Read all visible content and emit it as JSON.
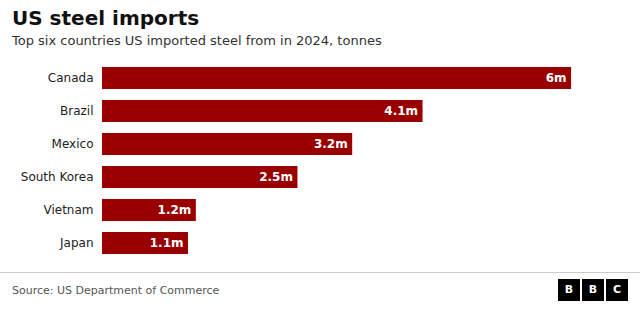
{
  "chart_data": {
    "type": "bar",
    "orientation": "horizontal",
    "title": "US steel imports",
    "subtitle": "Top six countries US imported steel from in 2024, tonnes",
    "source": "Source: US Department of Commerce",
    "logo": "BBC",
    "categories": [
      "Canada",
      "Brazil",
      "Mexico",
      "South Korea",
      "Vietnam",
      "Japan"
    ],
    "values": [
      6.0,
      4.1,
      3.2,
      2.5,
      1.2,
      1.1
    ],
    "value_labels": [
      "6m",
      "4.1m",
      "3.2m",
      "2.5m",
      "1.2m",
      "1.1m"
    ],
    "data_labels": true,
    "color": "#990000",
    "xlim": [
      0,
      6.6
    ],
    "tick_labels": "y",
    "grid": false
  }
}
